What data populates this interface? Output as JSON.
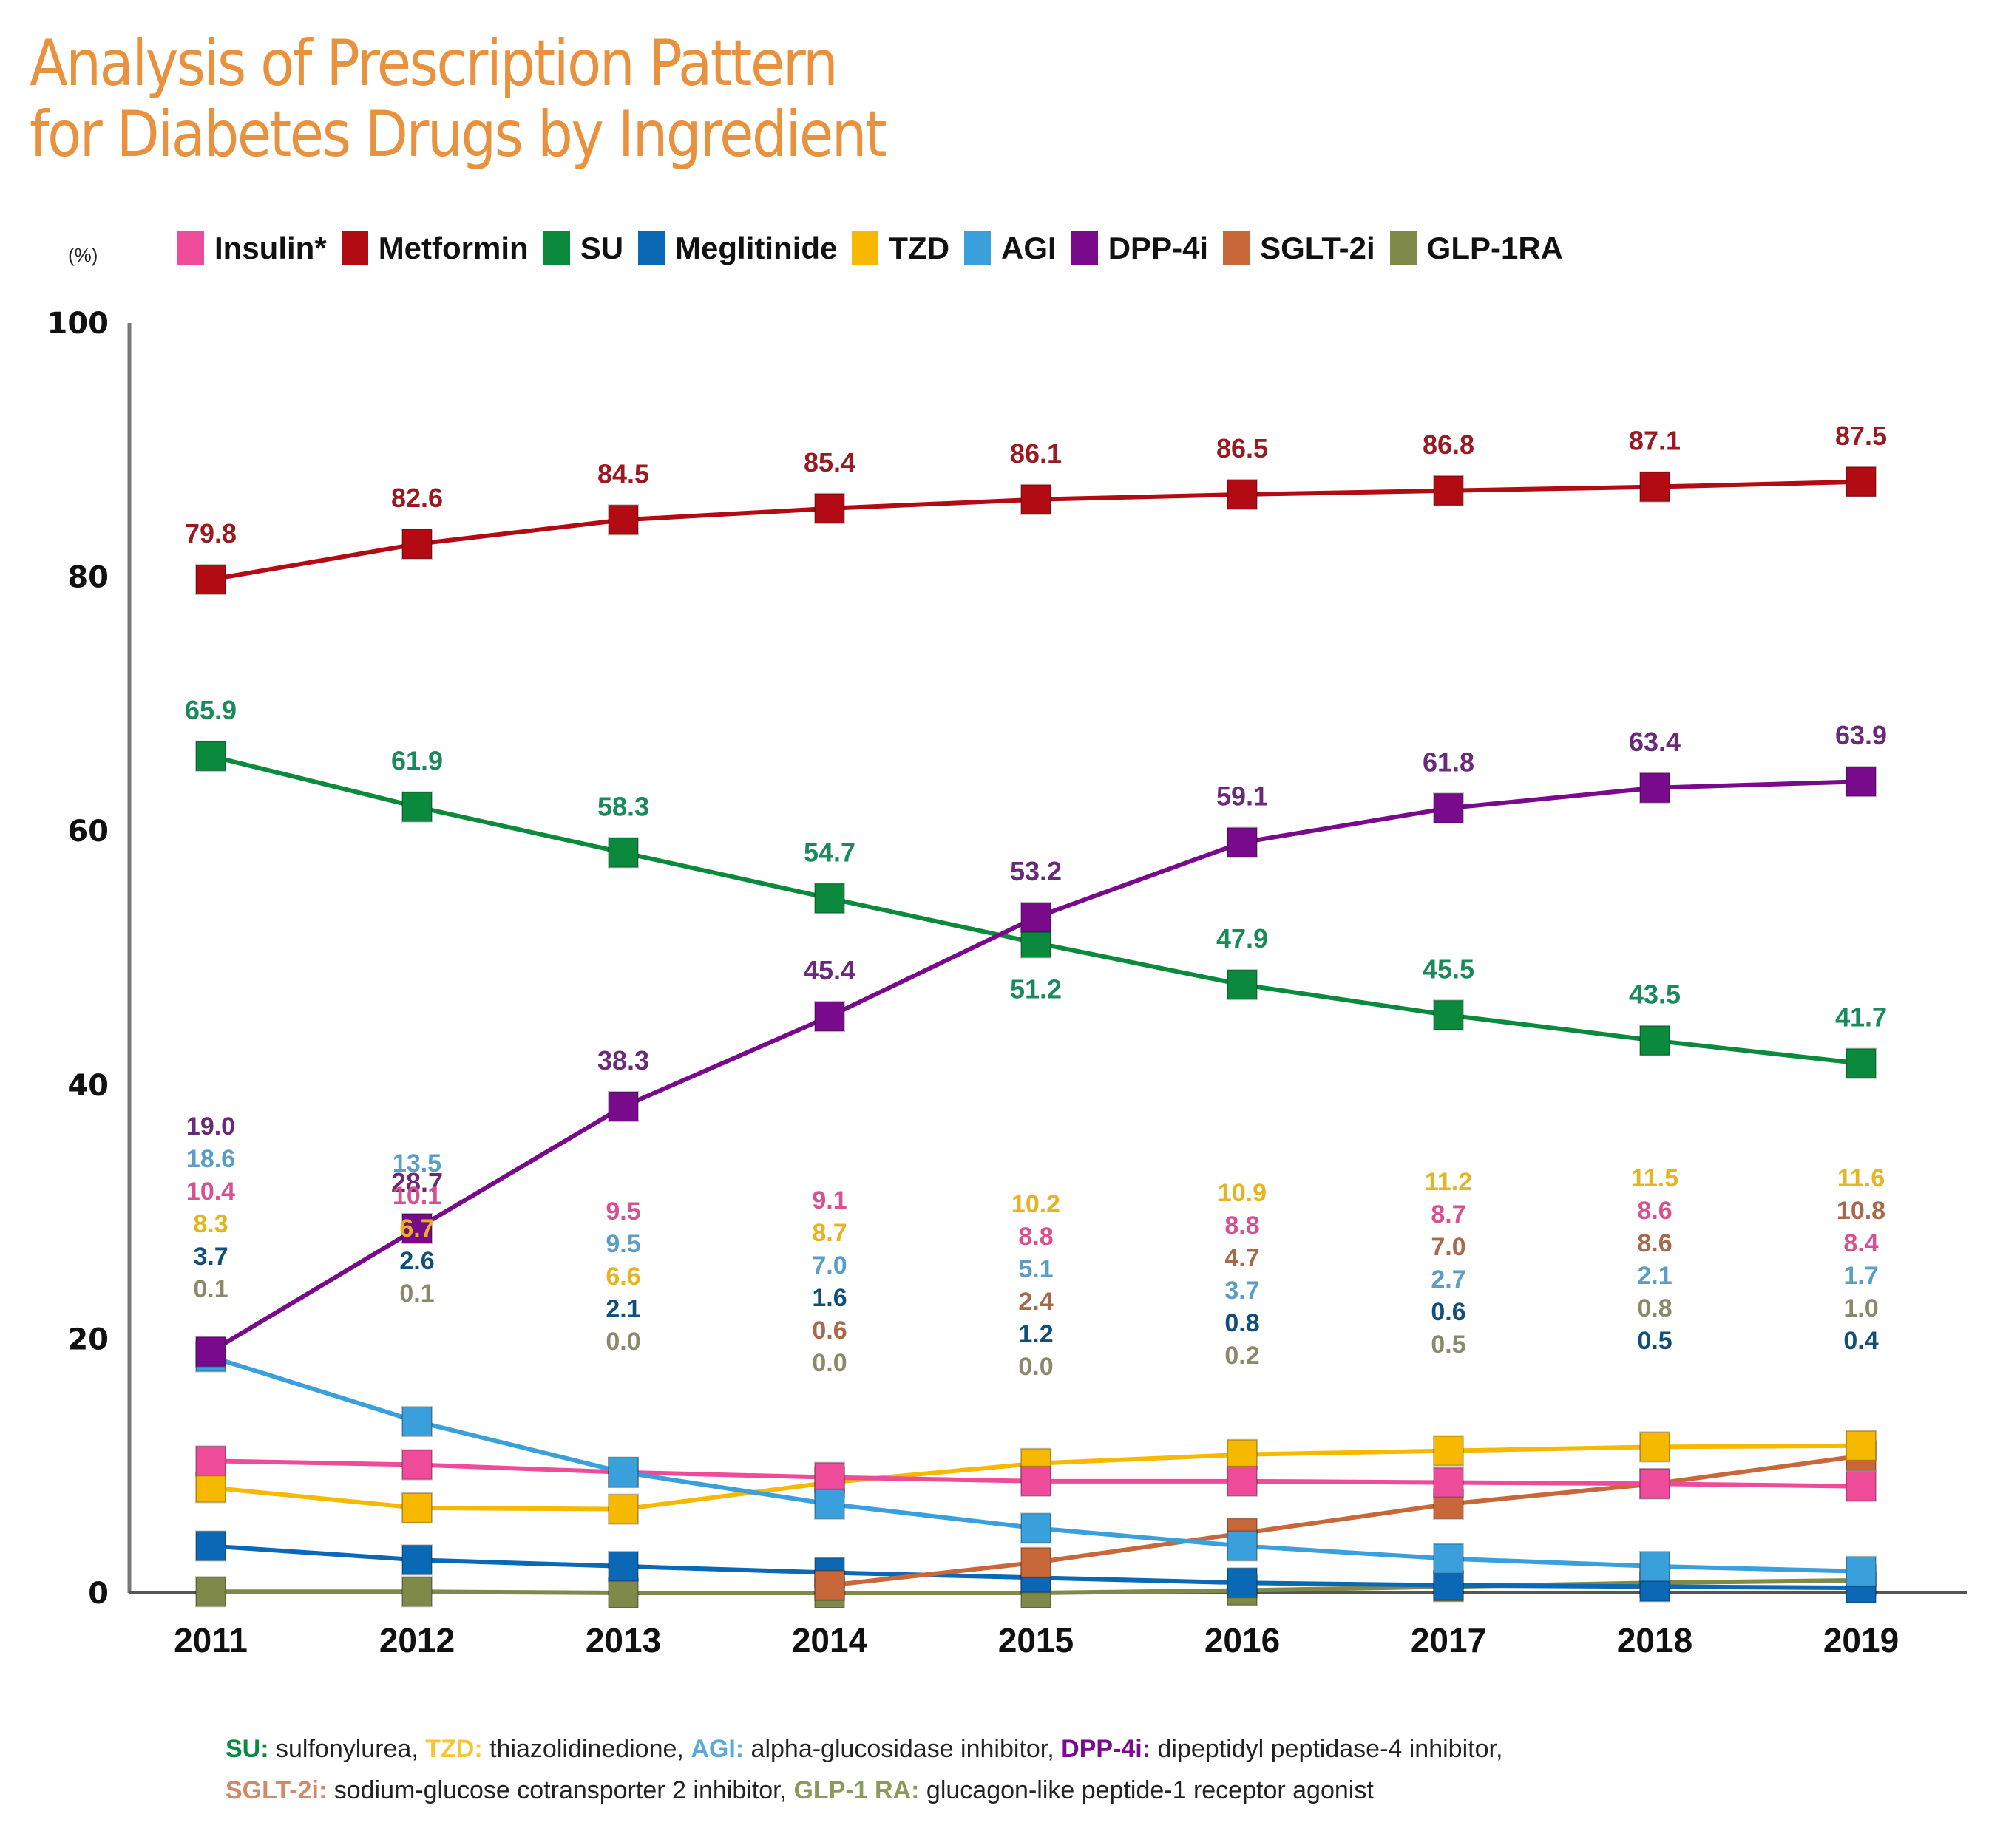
{
  "title": {
    "line1": "Analysis of Prescription Pattern",
    "line2": "for Diabetes Drugs by Ingredient",
    "color": "#e8913e"
  },
  "unit_label": "(%)",
  "legend": [
    {
      "name": "Insulin*",
      "color": "#ef4b9b"
    },
    {
      "name": "Metformin",
      "color": "#b20b13"
    },
    {
      "name": "SU",
      "color": "#0b8a3e"
    },
    {
      "name": "Meglitinide",
      "color": "#0a68b4"
    },
    {
      "name": "TZD",
      "color": "#f7b800"
    },
    {
      "name": "AGI",
      "color": "#3aa0dc"
    },
    {
      "name": "DPP-4i",
      "color": "#7a0a8c"
    },
    {
      "name": "SGLT-2i",
      "color": "#c8683a"
    },
    {
      "name": "GLP-1RA",
      "color": "#7f8a4a"
    }
  ],
  "footnote": {
    "line1": [
      {
        "abbr": "SU:",
        "text": " sulfonylurea, ",
        "color": "#0b8a3e"
      },
      {
        "abbr": "TZD:",
        "text": " thiazolidinedione, ",
        "color": "#f7c530"
      },
      {
        "abbr": "AGI:",
        "text": " alpha-glucosidase inhibitor, ",
        "color": "#5aa9d6"
      },
      {
        "abbr": "DPP-4i:",
        "text": " dipeptidyl peptidase-4 inhibitor,",
        "color": "#7a0a8c"
      }
    ],
    "line2": [
      {
        "abbr": "SGLT-2i:",
        "text": " sodium-glucose cotransporter 2 inhibitor, ",
        "color": "#d08a6a"
      },
      {
        "abbr": "GLP-1 RA:",
        "text": " glucagon-like peptide-1 receptor agonist",
        "color": "#8a9a5a"
      }
    ]
  },
  "chart_data": {
    "type": "line",
    "title": "Analysis of Prescription Pattern for Diabetes Drugs by Ingredient",
    "xlabel": "",
    "ylabel": "(%)",
    "x": [
      "2011",
      "2012",
      "2013",
      "2014",
      "2015",
      "2016",
      "2017",
      "2018",
      "2019"
    ],
    "ylim": [
      0,
      100
    ],
    "yticks": [
      0,
      20,
      40,
      60,
      80,
      100
    ],
    "grid": false,
    "legend_position": "top",
    "series": [
      {
        "name": "Insulin*",
        "color": "#ef4b9b",
        "label_color": "#d8508e",
        "values": [
          10.4,
          10.1,
          9.5,
          9.1,
          8.8,
          8.8,
          8.7,
          8.6,
          8.4
        ]
      },
      {
        "name": "Metformin",
        "color": "#b20b13",
        "label_color": "#9a1a22",
        "values": [
          79.8,
          82.6,
          84.5,
          85.4,
          86.1,
          86.5,
          86.8,
          87.1,
          87.5
        ]
      },
      {
        "name": "SU",
        "color": "#0b8a3e",
        "label_color": "#1a8a5a",
        "values": [
          65.9,
          61.9,
          58.3,
          54.7,
          51.2,
          47.9,
          45.5,
          43.5,
          41.7
        ]
      },
      {
        "name": "Meglitinide",
        "color": "#0a68b4",
        "label_color": "#0f4f7a",
        "values": [
          3.7,
          2.6,
          2.1,
          1.6,
          1.2,
          0.8,
          0.6,
          0.5,
          0.4
        ]
      },
      {
        "name": "TZD",
        "color": "#f7b800",
        "label_color": "#e6b420",
        "values": [
          8.3,
          6.7,
          6.6,
          8.7,
          10.2,
          10.9,
          11.2,
          11.5,
          11.6
        ]
      },
      {
        "name": "AGI",
        "color": "#3aa0dc",
        "label_color": "#5a9ec8",
        "values": [
          18.6,
          13.5,
          9.5,
          7.0,
          5.1,
          3.7,
          2.7,
          2.1,
          1.7
        ]
      },
      {
        "name": "DPP-4i",
        "color": "#7a0a8c",
        "label_color": "#6a2a7a",
        "values": [
          19.0,
          28.7,
          38.3,
          45.4,
          53.2,
          59.1,
          61.8,
          63.4,
          63.9
        ]
      },
      {
        "name": "SGLT-2i",
        "color": "#c8683a",
        "label_color": "#a8684a",
        "values": [
          null,
          null,
          null,
          0.6,
          2.4,
          4.7,
          7.0,
          8.6,
          10.8
        ]
      },
      {
        "name": "GLP-1RA",
        "color": "#7f8a4a",
        "label_color": "#8a8a6a",
        "values": [
          0.1,
          0.1,
          0.0,
          0.0,
          0.0,
          0.2,
          0.5,
          0.8,
          1.0
        ]
      }
    ],
    "label_stacks": [
      {
        "year": "2011",
        "entries": [
          [
            "DPP-4i",
            "19.0"
          ],
          [
            "AGI",
            "18.6"
          ],
          [
            "Insulin*",
            "10.4"
          ],
          [
            "TZD",
            "8.3"
          ],
          [
            "Meglitinide",
            "3.7"
          ],
          [
            "GLP-1RA",
            "0.1"
          ]
        ]
      },
      {
        "year": "2012",
        "entries": [
          [
            "AGI",
            "13.5"
          ],
          [
            "Insulin*",
            "10.1"
          ],
          [
            "TZD",
            "6.7"
          ],
          [
            "Meglitinide",
            "2.6"
          ],
          [
            "GLP-1RA",
            "0.1"
          ]
        ]
      },
      {
        "year": "2013",
        "entries": [
          [
            "Insulin*",
            "9.5"
          ],
          [
            "AGI",
            "9.5"
          ],
          [
            "TZD",
            "6.6"
          ],
          [
            "Meglitinide",
            "2.1"
          ],
          [
            "GLP-1RA",
            "0.0"
          ]
        ]
      },
      {
        "year": "2014",
        "entries": [
          [
            "Insulin*",
            "9.1"
          ],
          [
            "TZD",
            "8.7"
          ],
          [
            "AGI",
            "7.0"
          ],
          [
            "Meglitinide",
            "1.6"
          ],
          [
            "SGLT-2i",
            "0.6"
          ],
          [
            "GLP-1RA",
            "0.0"
          ]
        ]
      },
      {
        "year": "2015",
        "entries": [
          [
            "TZD",
            "10.2"
          ],
          [
            "Insulin*",
            "8.8"
          ],
          [
            "AGI",
            "5.1"
          ],
          [
            "SGLT-2i",
            "2.4"
          ],
          [
            "Meglitinide",
            "1.2"
          ],
          [
            "GLP-1RA",
            "0.0"
          ]
        ]
      },
      {
        "year": "2016",
        "entries": [
          [
            "TZD",
            "10.9"
          ],
          [
            "Insulin*",
            "8.8"
          ],
          [
            "SGLT-2i",
            "4.7"
          ],
          [
            "AGI",
            "3.7"
          ],
          [
            "Meglitinide",
            "0.8"
          ],
          [
            "GLP-1RA",
            "0.2"
          ]
        ]
      },
      {
        "year": "2017",
        "entries": [
          [
            "TZD",
            "11.2"
          ],
          [
            "Insulin*",
            "8.7"
          ],
          [
            "SGLT-2i",
            "7.0"
          ],
          [
            "AGI",
            "2.7"
          ],
          [
            "Meglitinide",
            "0.6"
          ],
          [
            "GLP-1RA",
            "0.5"
          ]
        ]
      },
      {
        "year": "2018",
        "entries": [
          [
            "TZD",
            "11.5"
          ],
          [
            "Insulin*",
            "8.6"
          ],
          [
            "SGLT-2i",
            "8.6"
          ],
          [
            "AGI",
            "2.1"
          ],
          [
            "GLP-1RA",
            "0.8"
          ],
          [
            "Meglitinide",
            "0.5"
          ]
        ]
      },
      {
        "year": "2019",
        "entries": [
          [
            "TZD",
            "11.6"
          ],
          [
            "SGLT-2i",
            "10.8"
          ],
          [
            "Insulin*",
            "8.4"
          ],
          [
            "AGI",
            "1.7"
          ],
          [
            "GLP-1RA",
            "1.0"
          ],
          [
            "Meglitinide",
            "0.4"
          ]
        ]
      }
    ],
    "direct_labels": {
      "Metformin": "above",
      "SU": [
        "above",
        "above",
        "above",
        "above",
        "below",
        "above",
        "above",
        "above",
        "above"
      ],
      "DPP-4i": [
        "stack",
        "above",
        "above",
        "above",
        "above",
        "above",
        "above",
        "above",
        "above"
      ]
    }
  }
}
